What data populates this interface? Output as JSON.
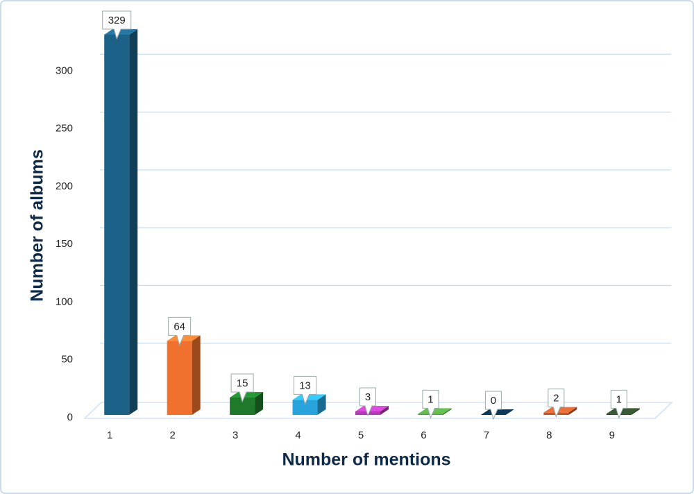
{
  "chart_data": {
    "type": "bar3d",
    "x_label": "Number of mentions",
    "y_label": "Number of albums",
    "categories": [
      1,
      2,
      3,
      4,
      5,
      6,
      7,
      8,
      9
    ],
    "values": [
      329,
      64,
      15,
      13,
      3,
      1,
      0,
      2,
      1
    ],
    "colors": [
      "#1b6188",
      "#f0712e",
      "#1e7a2a",
      "#29a3dc",
      "#b23bb4",
      "#4f9c3e",
      "#0c2d48",
      "#c0592a",
      "#2d4a2a"
    ],
    "ylim": [
      0,
      350
    ],
    "yticks": [
      0,
      50,
      100,
      150,
      200,
      250,
      300
    ],
    "grid": true
  }
}
